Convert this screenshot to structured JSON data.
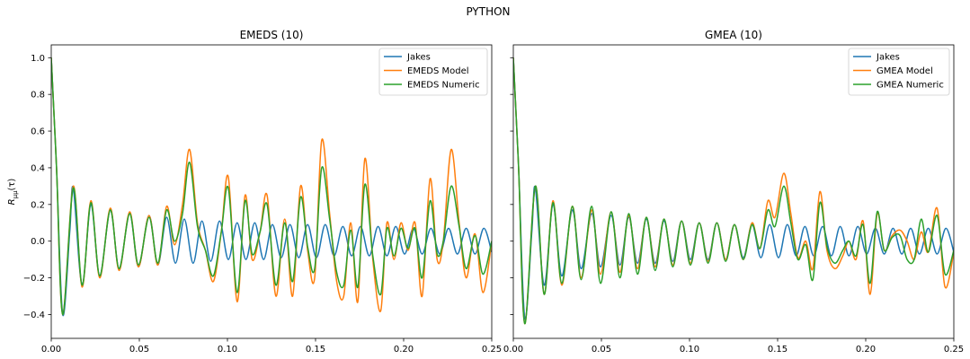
{
  "figure_title": "PYTHON",
  "ylabel_tex": {
    "main": "R",
    "sub": "μμ",
    "tail": "(τ)"
  },
  "colors": {
    "jakes": "#1f77b4",
    "model": "#ff7f0e",
    "numeric": "#2ca02c"
  },
  "chart_data": [
    {
      "type": "line",
      "title": "EMEDS (10)",
      "xlabel": "",
      "ylabel": "R_{μμ}(τ)",
      "xlim": [
        0,
        0.25
      ],
      "ylim": [
        -0.53,
        1.07
      ],
      "xticks": [
        0.0,
        0.05,
        0.1,
        0.15,
        0.2,
        0.25
      ],
      "xtick_labels": [
        "0.00",
        "0.05",
        "0.10",
        "0.15",
        "0.20",
        "0.25"
      ],
      "yticks": [
        -0.4,
        -0.2,
        0.0,
        0.2,
        0.4,
        0.6,
        0.8,
        1.0
      ],
      "ytick_labels": [
        "−0.4",
        "−0.2",
        "0.0",
        "0.2",
        "0.4",
        "0.6",
        "0.8",
        "1.0"
      ],
      "grid": false,
      "legend_position": "top-right",
      "series": [
        {
          "name": "Jakes",
          "color_key": "jakes",
          "x": [
            0,
            0.003,
            0.0065,
            0.0105,
            0.0125,
            0.0175,
            0.0225,
            0.0275,
            0.0335,
            0.0385,
            0.0445,
            0.0495,
            0.0555,
            0.0605,
            0.0655,
            0.0705,
            0.0755,
            0.0805,
            0.0855,
            0.0905,
            0.0955,
            0.1005,
            0.1055,
            0.1105,
            0.1155,
            0.1205,
            0.1255,
            0.1305,
            0.1355,
            0.1405,
            0.1455,
            0.1505,
            0.1555,
            0.1605,
            0.1655,
            0.1705,
            0.1755,
            0.1805,
            0.1855,
            0.1905,
            0.1955,
            0.2005,
            0.2055,
            0.2105,
            0.2155,
            0.2205,
            0.2255,
            0.2305,
            0.2355,
            0.2405,
            0.2455,
            0.25
          ],
          "y": [
            1.0,
            0.4,
            -0.4,
            0.05,
            0.29,
            -0.24,
            0.2,
            -0.19,
            0.17,
            -0.15,
            0.15,
            -0.14,
            0.14,
            -0.13,
            0.13,
            -0.12,
            0.12,
            -0.12,
            0.11,
            -0.11,
            0.11,
            -0.1,
            0.1,
            -0.1,
            0.1,
            -0.1,
            0.09,
            -0.09,
            0.09,
            -0.09,
            0.09,
            -0.09,
            0.09,
            -0.08,
            0.08,
            -0.08,
            0.08,
            -0.08,
            0.08,
            -0.08,
            0.08,
            -0.07,
            0.07,
            -0.07,
            0.07,
            -0.07,
            0.07,
            -0.07,
            0.07,
            -0.07,
            0.07,
            -0.06
          ]
        },
        {
          "name": "EMEDS Model",
          "color_key": "model",
          "x": [
            0,
            0.003,
            0.0065,
            0.0125,
            0.0175,
            0.0225,
            0.0275,
            0.0335,
            0.0385,
            0.0445,
            0.0495,
            0.0555,
            0.0605,
            0.0655,
            0.07,
            0.0745,
            0.0785,
            0.083,
            0.0875,
            0.092,
            0.0965,
            0.1005,
            0.1055,
            0.11,
            0.114,
            0.1185,
            0.1225,
            0.1275,
            0.1325,
            0.137,
            0.1415,
            0.1455,
            0.1495,
            0.1535,
            0.158,
            0.162,
            0.166,
            0.17,
            0.174,
            0.178,
            0.1825,
            0.187,
            0.1905,
            0.1945,
            0.1985,
            0.2025,
            0.2065,
            0.2105,
            0.215,
            0.219,
            0.2225,
            0.227,
            0.2315,
            0.2355,
            0.2405,
            0.245,
            0.25
          ],
          "y": [
            1.0,
            0.4,
            -0.4,
            0.3,
            -0.25,
            0.22,
            -0.2,
            0.18,
            -0.16,
            0.16,
            -0.14,
            0.14,
            -0.13,
            0.19,
            -0.02,
            0.2,
            0.5,
            0.1,
            -0.05,
            -0.22,
            0.05,
            0.35,
            -0.33,
            0.25,
            -0.1,
            0.05,
            0.25,
            -0.3,
            0.12,
            -0.3,
            0.3,
            -0.05,
            -0.2,
            0.55,
            0.15,
            -0.22,
            -0.3,
            0.1,
            -0.33,
            0.45,
            -0.1,
            -0.38,
            0.1,
            -0.1,
            0.1,
            -0.05,
            0.1,
            -0.3,
            0.34,
            -0.1,
            0.0,
            0.5,
            0.1,
            -0.2,
            0.04,
            -0.28,
            0.0
          ]
        },
        {
          "name": "EMEDS Numeric",
          "color_key": "numeric",
          "x": [
            0,
            0.003,
            0.0065,
            0.0125,
            0.0175,
            0.0225,
            0.0275,
            0.0335,
            0.0385,
            0.0445,
            0.0495,
            0.0555,
            0.0605,
            0.0655,
            0.07,
            0.0745,
            0.0785,
            0.083,
            0.0875,
            0.092,
            0.0965,
            0.1005,
            0.1055,
            0.11,
            0.114,
            0.1185,
            0.1225,
            0.1275,
            0.1325,
            0.137,
            0.1415,
            0.1455,
            0.1495,
            0.1535,
            0.158,
            0.162,
            0.166,
            0.17,
            0.174,
            0.178,
            0.1825,
            0.187,
            0.1905,
            0.1945,
            0.1985,
            0.2025,
            0.2065,
            0.2105,
            0.215,
            0.219,
            0.2225,
            0.227,
            0.2315,
            0.2355,
            0.2405,
            0.245,
            0.25
          ],
          "y": [
            1.0,
            0.4,
            -0.4,
            0.29,
            -0.24,
            0.21,
            -0.19,
            0.17,
            -0.15,
            0.15,
            -0.13,
            0.13,
            -0.12,
            0.17,
            0.0,
            0.15,
            0.43,
            0.08,
            -0.05,
            -0.19,
            0.05,
            0.29,
            -0.28,
            0.22,
            -0.07,
            0.05,
            0.2,
            -0.24,
            0.1,
            -0.22,
            0.24,
            -0.03,
            -0.15,
            0.4,
            0.12,
            -0.17,
            -0.24,
            0.06,
            -0.25,
            0.31,
            -0.08,
            -0.29,
            0.07,
            -0.08,
            0.07,
            -0.04,
            0.07,
            -0.2,
            0.22,
            -0.07,
            0.0,
            0.3,
            0.08,
            -0.15,
            0.03,
            -0.18,
            0.0
          ]
        }
      ]
    },
    {
      "type": "line",
      "title": "GMEA (10)",
      "xlabel": "",
      "ylabel": "",
      "xlim": [
        0,
        0.25
      ],
      "ylim": [
        -0.53,
        1.07
      ],
      "xticks": [
        0.0,
        0.05,
        0.1,
        0.15,
        0.2,
        0.25
      ],
      "xtick_labels": [
        "0.00",
        "0.05",
        "0.10",
        "0.15",
        "0.20",
        "0.25"
      ],
      "yticks": [
        -0.4,
        -0.2,
        0.0,
        0.2,
        0.4,
        0.6,
        0.8,
        1.0
      ],
      "ytick_labels": [],
      "grid": false,
      "legend_position": "top-right",
      "series": [
        {
          "name": "Jakes",
          "color_key": "jakes",
          "x": [
            0,
            0.003,
            0.0065,
            0.0105,
            0.0125,
            0.0175,
            0.0225,
            0.0275,
            0.0335,
            0.0385,
            0.0445,
            0.0495,
            0.0555,
            0.0605,
            0.0655,
            0.0705,
            0.0755,
            0.0805,
            0.0855,
            0.0905,
            0.0955,
            0.1005,
            0.1055,
            0.1105,
            0.1155,
            0.1205,
            0.1255,
            0.1305,
            0.1355,
            0.1405,
            0.1455,
            0.1505,
            0.1555,
            0.1605,
            0.1655,
            0.1705,
            0.1755,
            0.1805,
            0.1855,
            0.1905,
            0.1955,
            0.2005,
            0.2055,
            0.2105,
            0.2155,
            0.2205,
            0.2255,
            0.2305,
            0.2355,
            0.2405,
            0.2455,
            0.25
          ],
          "y": [
            1.0,
            0.4,
            -0.42,
            0.05,
            0.29,
            -0.24,
            0.2,
            -0.19,
            0.17,
            -0.15,
            0.15,
            -0.14,
            0.14,
            -0.13,
            0.13,
            -0.12,
            0.12,
            -0.12,
            0.11,
            -0.11,
            0.11,
            -0.1,
            0.1,
            -0.1,
            0.1,
            -0.1,
            0.09,
            -0.09,
            0.09,
            -0.09,
            0.09,
            -0.09,
            0.09,
            -0.08,
            0.08,
            -0.08,
            0.08,
            -0.08,
            0.08,
            -0.08,
            0.08,
            -0.07,
            0.07,
            -0.07,
            0.07,
            -0.07,
            0.07,
            -0.07,
            0.07,
            -0.07,
            0.07,
            -0.06
          ]
        },
        {
          "name": "GMEA Model",
          "color_key": "model",
          "x": [
            0,
            0.003,
            0.0065,
            0.0125,
            0.0175,
            0.0225,
            0.0275,
            0.0335,
            0.0385,
            0.0445,
            0.0495,
            0.0555,
            0.0605,
            0.0655,
            0.0705,
            0.0755,
            0.0805,
            0.0855,
            0.0905,
            0.0955,
            0.1005,
            0.1055,
            0.1105,
            0.1155,
            0.1205,
            0.1255,
            0.1305,
            0.1355,
            0.14,
            0.1445,
            0.1485,
            0.1535,
            0.1575,
            0.1615,
            0.166,
            0.17,
            0.174,
            0.178,
            0.1825,
            0.187,
            0.1905,
            0.1945,
            0.1985,
            0.2025,
            0.2065,
            0.2105,
            0.215,
            0.2195,
            0.2235,
            0.2275,
            0.2315,
            0.2355,
            0.2405,
            0.245,
            0.25
          ],
          "y": [
            1.0,
            0.4,
            -0.45,
            0.3,
            -0.29,
            0.22,
            -0.24,
            0.19,
            -0.2,
            0.17,
            -0.18,
            0.16,
            -0.17,
            0.14,
            -0.15,
            0.13,
            -0.14,
            0.12,
            -0.13,
            0.11,
            -0.12,
            0.1,
            -0.11,
            0.1,
            -0.1,
            0.09,
            -0.1,
            0.1,
            -0.04,
            0.22,
            0.13,
            0.37,
            0.15,
            -0.09,
            0.0,
            -0.15,
            0.27,
            -0.05,
            -0.15,
            -0.08,
            0.0,
            -0.1,
            0.11,
            -0.29,
            0.15,
            -0.05,
            0.03,
            0.06,
            0.0,
            -0.1,
            0.05,
            -0.06,
            0.18,
            -0.25,
            -0.06
          ]
        },
        {
          "name": "GMEA Numeric",
          "color_key": "numeric",
          "x": [
            0,
            0.003,
            0.0065,
            0.0125,
            0.0175,
            0.0225,
            0.0275,
            0.0335,
            0.0385,
            0.0445,
            0.0495,
            0.0555,
            0.0605,
            0.0655,
            0.0705,
            0.0755,
            0.0805,
            0.0855,
            0.0905,
            0.0955,
            0.1005,
            0.1055,
            0.1105,
            0.1155,
            0.1205,
            0.1255,
            0.1305,
            0.1355,
            0.14,
            0.1445,
            0.1485,
            0.1535,
            0.1575,
            0.1615,
            0.166,
            0.17,
            0.174,
            0.178,
            0.1825,
            0.187,
            0.1905,
            0.1945,
            0.1985,
            0.2025,
            0.2065,
            0.2105,
            0.215,
            0.2195,
            0.2235,
            0.2275,
            0.2315,
            0.2355,
            0.2405,
            0.245,
            0.25
          ],
          "y": [
            1.0,
            0.4,
            -0.45,
            0.3,
            -0.29,
            0.21,
            -0.23,
            0.19,
            -0.21,
            0.19,
            -0.23,
            0.16,
            -0.2,
            0.15,
            -0.18,
            0.13,
            -0.16,
            0.12,
            -0.14,
            0.11,
            -0.13,
            0.1,
            -0.12,
            0.1,
            -0.11,
            0.09,
            -0.1,
            0.09,
            -0.04,
            0.17,
            0.08,
            0.3,
            0.1,
            -0.1,
            -0.02,
            -0.21,
            0.21,
            -0.03,
            -0.12,
            -0.05,
            0.0,
            -0.08,
            0.09,
            -0.23,
            0.16,
            -0.05,
            0.02,
            0.03,
            -0.1,
            -0.1,
            0.12,
            -0.06,
            0.14,
            -0.18,
            -0.05
          ]
        }
      ]
    }
  ]
}
